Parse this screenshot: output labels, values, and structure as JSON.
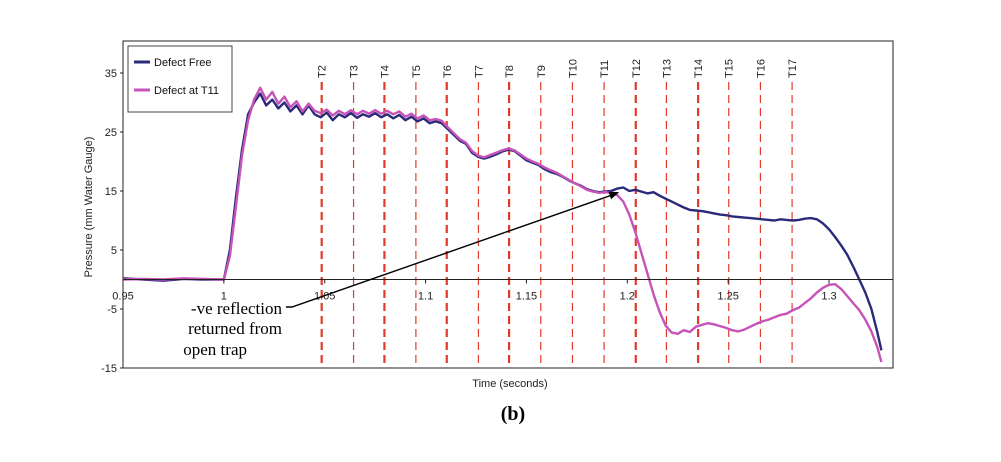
{
  "chart_data": {
    "type": "line",
    "title": "",
    "xlabel": "Time (seconds)",
    "ylabel": "Pressure (mm Water Gauge)",
    "xlim": [
      0.95,
      1.33
    ],
    "ylim": [
      -15,
      38
    ],
    "x_ticks": [
      0.95,
      1.0,
      1.05,
      1.1,
      1.15,
      1.2,
      1.25,
      1.3
    ],
    "x_tick_labels": [
      "0.95",
      "1",
      "1.05",
      "1.1",
      "1.15",
      "1.2",
      "1.25",
      "1.3"
    ],
    "y_ticks": [
      -15,
      -5,
      5,
      15,
      25,
      35
    ],
    "y_tick_labels": [
      "-15",
      "-5",
      "5",
      "15",
      "25",
      "35"
    ],
    "legend": {
      "placement": "top-left",
      "entries": [
        "Defect Free",
        "Defect at T11"
      ]
    },
    "colors": {
      "Defect Free": "#2b2a7a",
      "Defect at T11": "#c653b8",
      "markers": "#e23a2a"
    },
    "markers": [
      {
        "label": "T2",
        "x": 1.0485,
        "bold": true
      },
      {
        "label": "T3",
        "x": 1.0643,
        "bold": false
      },
      {
        "label": "T4",
        "x": 1.0796,
        "bold": true
      },
      {
        "label": "T5",
        "x": 1.0952,
        "bold": false
      },
      {
        "label": "T6",
        "x": 1.1105,
        "bold": true
      },
      {
        "label": "T7",
        "x": 1.1262,
        "bold": false
      },
      {
        "label": "T8",
        "x": 1.1414,
        "bold": true
      },
      {
        "label": "T9",
        "x": 1.1571,
        "bold": false
      },
      {
        "label": "T10",
        "x": 1.1728,
        "bold": false
      },
      {
        "label": "T11",
        "x": 1.1885,
        "bold": false
      },
      {
        "label": "T12",
        "x": 1.2042,
        "bold": true
      },
      {
        "label": "T13",
        "x": 1.2194,
        "bold": false
      },
      {
        "label": "T14",
        "x": 1.2351,
        "bold": true
      },
      {
        "label": "T15",
        "x": 1.2503,
        "bold": false
      },
      {
        "label": "T16",
        "x": 1.266,
        "bold": false
      },
      {
        "label": "T17",
        "x": 1.2817,
        "bold": false
      }
    ],
    "series": [
      {
        "name": "Defect Free",
        "x": [
          0.95,
          0.96,
          0.97,
          0.98,
          0.99,
          1.0,
          1.003,
          1.006,
          1.009,
          1.012,
          1.015,
          1.018,
          1.021,
          1.024,
          1.027,
          1.03,
          1.033,
          1.036,
          1.039,
          1.042,
          1.045,
          1.048,
          1.051,
          1.054,
          1.057,
          1.06,
          1.063,
          1.066,
          1.069,
          1.072,
          1.075,
          1.078,
          1.081,
          1.084,
          1.087,
          1.09,
          1.093,
          1.096,
          1.099,
          1.102,
          1.105,
          1.108,
          1.111,
          1.114,
          1.117,
          1.12,
          1.123,
          1.126,
          1.129,
          1.132,
          1.135,
          1.138,
          1.141,
          1.144,
          1.147,
          1.15,
          1.153,
          1.156,
          1.159,
          1.162,
          1.165,
          1.168,
          1.171,
          1.174,
          1.177,
          1.18,
          1.183,
          1.186,
          1.189,
          1.192,
          1.195,
          1.198,
          1.201,
          1.204,
          1.207,
          1.21,
          1.213,
          1.216,
          1.219,
          1.222,
          1.225,
          1.228,
          1.231,
          1.234,
          1.237,
          1.24,
          1.243,
          1.246,
          1.249,
          1.252,
          1.255,
          1.258,
          1.261,
          1.264,
          1.267,
          1.27,
          1.273,
          1.276,
          1.279,
          1.282,
          1.285,
          1.288,
          1.291,
          1.294,
          1.297,
          1.3,
          1.303,
          1.306,
          1.309,
          1.312,
          1.315,
          1.318,
          1.321,
          1.324,
          1.326
        ],
        "y": [
          0.2,
          0.0,
          -0.2,
          0.1,
          0.0,
          0.0,
          5.0,
          14.0,
          22.0,
          28.0,
          30.0,
          31.5,
          29.5,
          30.5,
          29.0,
          30.0,
          28.5,
          29.5,
          28.0,
          29.5,
          28.0,
          27.5,
          28.3,
          27.0,
          28.0,
          27.5,
          28.2,
          27.4,
          28.0,
          27.6,
          28.2,
          27.5,
          28.0,
          27.3,
          27.9,
          27.0,
          27.6,
          26.8,
          27.3,
          26.5,
          26.8,
          26.5,
          25.5,
          24.5,
          23.5,
          23.0,
          21.5,
          20.8,
          20.5,
          20.8,
          21.2,
          21.7,
          22.0,
          21.8,
          21.0,
          20.2,
          19.8,
          19.4,
          18.7,
          18.2,
          17.9,
          17.4,
          16.8,
          16.3,
          15.9,
          15.3,
          15.0,
          14.8,
          14.9,
          15.0,
          15.4,
          15.6,
          15.0,
          15.2,
          14.9,
          14.6,
          14.8,
          14.2,
          13.7,
          13.2,
          12.7,
          12.2,
          11.8,
          11.7,
          11.6,
          11.4,
          11.2,
          11.0,
          10.9,
          10.7,
          10.6,
          10.5,
          10.4,
          10.3,
          10.2,
          10.1,
          10.0,
          10.2,
          10.1,
          10.0,
          10.1,
          10.3,
          10.4,
          10.2,
          9.5,
          8.5,
          7.2,
          5.8,
          4.2,
          2.2,
          0.0,
          -2.2,
          -5.0,
          -9.0,
          -12.0
        ]
      },
      {
        "name": "Defect at T11",
        "x": [
          0.95,
          0.96,
          0.97,
          0.98,
          0.99,
          1.0,
          1.003,
          1.006,
          1.009,
          1.012,
          1.015,
          1.018,
          1.021,
          1.024,
          1.027,
          1.03,
          1.033,
          1.036,
          1.039,
          1.042,
          1.045,
          1.048,
          1.051,
          1.054,
          1.057,
          1.06,
          1.063,
          1.066,
          1.069,
          1.072,
          1.075,
          1.078,
          1.081,
          1.084,
          1.087,
          1.09,
          1.093,
          1.096,
          1.099,
          1.102,
          1.105,
          1.108,
          1.111,
          1.114,
          1.117,
          1.12,
          1.123,
          1.126,
          1.129,
          1.132,
          1.135,
          1.138,
          1.141,
          1.144,
          1.147,
          1.15,
          1.153,
          1.156,
          1.159,
          1.162,
          1.165,
          1.168,
          1.171,
          1.174,
          1.177,
          1.18,
          1.183,
          1.186,
          1.189,
          1.192,
          1.195,
          1.198,
          1.201,
          1.204,
          1.207,
          1.21,
          1.213,
          1.216,
          1.219,
          1.222,
          1.225,
          1.228,
          1.231,
          1.234,
          1.237,
          1.24,
          1.243,
          1.246,
          1.249,
          1.252,
          1.255,
          1.258,
          1.261,
          1.264,
          1.267,
          1.27,
          1.273,
          1.276,
          1.279,
          1.282,
          1.285,
          1.288,
          1.291,
          1.294,
          1.297,
          1.3,
          1.303,
          1.306,
          1.309,
          1.312,
          1.315,
          1.318,
          1.321,
          1.324,
          1.326
        ],
        "y": [
          0.0,
          0.1,
          0.0,
          0.2,
          0.1,
          0.0,
          4.0,
          12.5,
          21.0,
          27.0,
          30.5,
          32.5,
          30.5,
          31.8,
          29.8,
          31.0,
          29.2,
          30.2,
          28.5,
          29.8,
          28.6,
          28.2,
          28.8,
          27.8,
          28.6,
          28.0,
          28.7,
          28.0,
          28.6,
          28.1,
          28.7,
          28.1,
          28.6,
          28.0,
          28.5,
          27.6,
          28.1,
          27.3,
          27.8,
          27.0,
          27.2,
          26.9,
          25.8,
          24.8,
          23.8,
          23.2,
          21.8,
          21.0,
          20.7,
          21.1,
          21.5,
          21.9,
          22.2,
          21.9,
          21.2,
          20.5,
          20.0,
          19.6,
          19.0,
          18.5,
          18.1,
          17.5,
          16.9,
          16.3,
          15.8,
          15.2,
          14.9,
          14.7,
          14.8,
          14.7,
          14.3,
          13.2,
          11.0,
          8.0,
          4.5,
          1.0,
          -2.5,
          -5.5,
          -7.8,
          -9.0,
          -9.2,
          -8.6,
          -8.9,
          -8.0,
          -7.7,
          -7.4,
          -7.6,
          -7.9,
          -8.2,
          -8.6,
          -8.8,
          -8.5,
          -8.0,
          -7.5,
          -7.1,
          -6.8,
          -6.4,
          -6.0,
          -5.8,
          -5.2,
          -4.8,
          -4.0,
          -3.2,
          -2.2,
          -1.4,
          -0.9,
          -0.8,
          -1.6,
          -2.8,
          -4.0,
          -5.2,
          -6.8,
          -8.8,
          -11.5,
          -14.0
        ]
      }
    ],
    "annotation": {
      "lines": [
        "-ve reflection",
        "returned from",
        "open trap"
      ],
      "arrow_to": {
        "x": 1.196,
        "y": 14.8
      }
    },
    "caption": "(b)"
  }
}
